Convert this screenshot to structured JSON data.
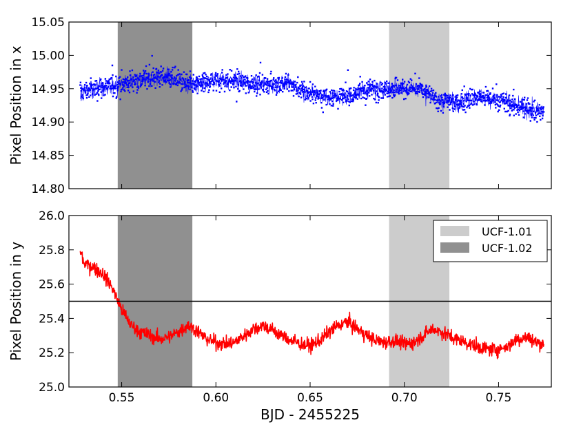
{
  "chart_data": [
    {
      "type": "scatter",
      "title": "",
      "xlabel": "",
      "ylabel": "Pixel Position in x",
      "xlim": [
        0.522,
        0.778
      ],
      "ylim": [
        14.8,
        15.05
      ],
      "x_ticks": [],
      "x_tick_labels": [],
      "y_ticks": [
        14.8,
        14.85,
        14.9,
        14.95,
        15.0,
        15.05
      ],
      "y_tick_labels": [
        "14.80",
        "14.85",
        "14.90",
        "14.95",
        "15.00",
        "15.05"
      ],
      "grid": false,
      "shaded_regions": [
        {
          "x0": 0.5479,
          "x1": 0.5875,
          "color": "#909090"
        },
        {
          "x0": 0.6919,
          "x1": 0.7239,
          "color": "#cccccc"
        }
      ],
      "series": [
        {
          "color": "#0000ff",
          "marker": "dot",
          "x": [
            0.528,
            0.538,
            0.548,
            0.558,
            0.568,
            0.578,
            0.588,
            0.598,
            0.608,
            0.618,
            0.628,
            0.638,
            0.648,
            0.658,
            0.668,
            0.678,
            0.688,
            0.698,
            0.708,
            0.718,
            0.728,
            0.738,
            0.748,
            0.758,
            0.768,
            0.774
          ],
          "y": [
            14.945,
            14.952,
            14.955,
            14.963,
            14.968,
            14.965,
            14.955,
            14.962,
            14.962,
            14.958,
            14.957,
            14.958,
            14.945,
            14.938,
            14.937,
            14.948,
            14.95,
            14.952,
            14.95,
            14.932,
            14.93,
            14.938,
            14.935,
            14.925,
            14.918,
            14.915
          ]
        }
      ]
    },
    {
      "type": "line",
      "title": "",
      "xlabel": "BJD - 2455225",
      "ylabel": "Pixel Position in y",
      "xlim": [
        0.522,
        0.778
      ],
      "ylim": [
        25.0,
        26.0
      ],
      "x_ticks": [
        0.55,
        0.6,
        0.65,
        0.7,
        0.75
      ],
      "x_tick_labels": [
        "0.55",
        "0.60",
        "0.65",
        "0.70",
        "0.75"
      ],
      "y_ticks": [
        25.0,
        25.2,
        25.4,
        25.6,
        25.8,
        26.0
      ],
      "y_tick_labels": [
        "25.0",
        "25.2",
        "25.4",
        "25.6",
        "25.8",
        "26.0"
      ],
      "grid": false,
      "legend_position": "top-right",
      "legend": [
        {
          "label": "UCF-1.01",
          "color": "#cccccc"
        },
        {
          "label": "UCF-1.02",
          "color": "#909090"
        }
      ],
      "shaded_regions": [
        {
          "x0": 0.5479,
          "x1": 0.5875,
          "color": "#909090"
        },
        {
          "x0": 0.6919,
          "x1": 0.7239,
          "color": "#cccccc"
        }
      ],
      "hline": {
        "y": 25.5,
        "color": "#000000"
      },
      "series": [
        {
          "color": "#ff0000",
          "x": [
            0.528,
            0.53,
            0.535,
            0.54,
            0.545,
            0.55,
            0.555,
            0.56,
            0.565,
            0.57,
            0.575,
            0.58,
            0.585,
            0.59,
            0.595,
            0.6,
            0.605,
            0.61,
            0.615,
            0.62,
            0.625,
            0.63,
            0.635,
            0.64,
            0.645,
            0.65,
            0.655,
            0.66,
            0.665,
            0.67,
            0.675,
            0.68,
            0.685,
            0.69,
            0.695,
            0.7,
            0.705,
            0.71,
            0.715,
            0.72,
            0.725,
            0.73,
            0.735,
            0.74,
            0.745,
            0.75,
            0.755,
            0.76,
            0.765,
            0.77,
            0.774
          ],
          "y": [
            25.8,
            25.72,
            25.7,
            25.66,
            25.58,
            25.45,
            25.36,
            25.32,
            25.3,
            25.28,
            25.29,
            25.32,
            25.36,
            25.33,
            25.28,
            25.26,
            25.25,
            25.26,
            25.3,
            25.34,
            25.36,
            25.33,
            25.3,
            25.27,
            25.25,
            25.24,
            25.27,
            25.32,
            25.36,
            25.38,
            25.34,
            25.3,
            25.27,
            25.26,
            25.27,
            25.25,
            25.26,
            25.3,
            25.34,
            25.32,
            25.29,
            25.27,
            25.25,
            25.23,
            25.22,
            25.22,
            25.24,
            25.28,
            25.29,
            25.26,
            25.25
          ]
        }
      ]
    }
  ]
}
